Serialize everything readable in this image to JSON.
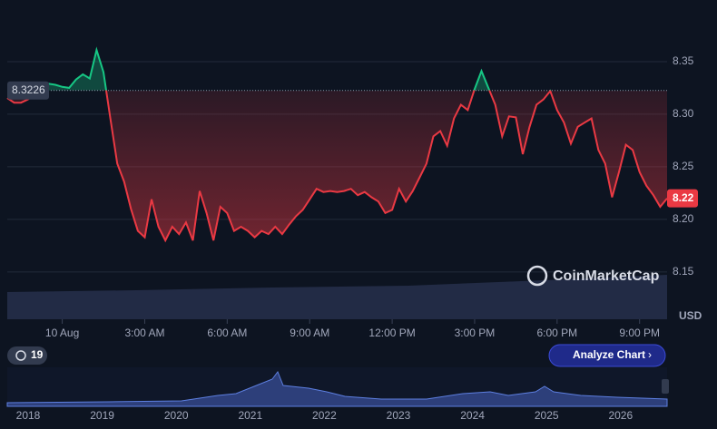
{
  "chart_data": {
    "type": "line",
    "currency": "USD",
    "watermark": "CoinMarketCap",
    "reference": 8.3226,
    "badge": "19",
    "button": "Analyze Chart",
    "navigator_labels": [
      "2018",
      "2019",
      "2020",
      "2021",
      "2022",
      "2023",
      "2024",
      "2025",
      "2026"
    ],
    "xlim": [
      -2,
      22
    ],
    "xticks": [
      {
        "value": 0,
        "label": "10 Aug"
      },
      {
        "value": 3,
        "label": "3:00 AM"
      },
      {
        "value": 6,
        "label": "6:00 AM"
      },
      {
        "value": 9,
        "label": "9:00 AM"
      },
      {
        "value": 12,
        "label": "12:00 PM"
      },
      {
        "value": 15,
        "label": "3:00 PM"
      },
      {
        "value": 18,
        "label": "6:00 PM"
      },
      {
        "value": 21,
        "label": "9:00 PM"
      }
    ],
    "ylim": [
      8.105,
      8.4
    ],
    "yticks": [
      8.35,
      {
        "value": 8.3,
        "label": "8.30"
      },
      8.25,
      {
        "value": 8.2,
        "label": "8.20"
      },
      8.15
    ],
    "grid": true,
    "colors": {
      "up": "#16c784",
      "down": "#ea3943"
    },
    "x": [
      -2,
      -1.75,
      -1.5,
      -1.25,
      -1,
      -0.75,
      -0.5,
      -0.25,
      0,
      0.25,
      0.5,
      0.75,
      1,
      1.25,
      1.5,
      1.75,
      2,
      2.25,
      2.5,
      2.75,
      3,
      3.25,
      3.5,
      3.75,
      4,
      4.25,
      4.5,
      4.75,
      5,
      5.25,
      5.5,
      5.75,
      6,
      6.25,
      6.5,
      6.75,
      7,
      7.25,
      7.5,
      7.75,
      8,
      8.25,
      8.5,
      8.75,
      9,
      9.25,
      9.5,
      9.75,
      10,
      10.25,
      10.5,
      10.75,
      11,
      11.25,
      11.5,
      11.75,
      12,
      12.25,
      12.5,
      12.75,
      13,
      13.25,
      13.5,
      13.75,
      14,
      14.25,
      14.5,
      14.75,
      15,
      15.25,
      15.5,
      15.75,
      16,
      16.25,
      16.5,
      16.75,
      17,
      17.25,
      17.5,
      17.75,
      18,
      18.25,
      18.5,
      18.75,
      19,
      19.25,
      19.5,
      19.75,
      20,
      20.25,
      20.5,
      20.75,
      21,
      21.25,
      21.5,
      21.75,
      22
    ],
    "series": [
      {
        "values": [
          8.3155,
          8.311,
          8.311,
          8.314,
          8.319,
          8.322,
          8.329,
          8.328,
          8.326,
          8.325,
          8.333,
          8.338,
          8.334,
          8.361,
          8.34,
          8.296,
          8.253,
          8.236,
          8.21,
          8.189,
          8.183,
          8.219,
          8.193,
          8.18,
          8.193,
          8.186,
          8.197,
          8.18,
          8.227,
          8.206,
          8.18,
          8.212,
          8.206,
          8.189,
          8.193,
          8.189,
          8.183,
          8.189,
          8.186,
          8.193,
          8.186,
          8.195,
          8.203,
          8.209,
          8.219,
          8.229,
          8.226,
          8.227,
          8.226,
          8.227,
          8.229,
          8.223,
          8.226,
          8.221,
          8.217,
          8.206,
          8.209,
          8.229,
          8.217,
          8.227,
          8.24,
          8.253,
          8.279,
          8.284,
          8.27,
          8.296,
          8.309,
          8.304,
          8.324,
          8.341,
          8.325,
          8.309,
          8.279,
          8.298,
          8.297,
          8.262,
          8.288,
          8.309,
          8.314,
          8.322,
          8.304,
          8.292,
          8.272,
          8.288,
          8.292,
          8.296,
          8.266,
          8.253,
          8.221,
          8.245,
          8.271,
          8.266,
          8.245,
          8.232,
          8.223,
          8.212,
          8.22
        ]
      }
    ]
  }
}
